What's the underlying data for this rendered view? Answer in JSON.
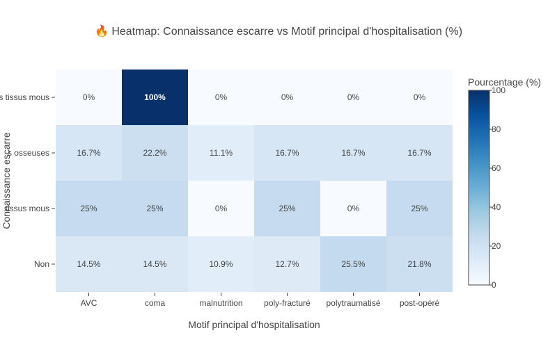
{
  "chart_data": {
    "type": "heatmap",
    "title": "🔥 Heatmap: Connaissance escarre vs Motif principal d'hospitalisation (%)",
    "xlabel": "Motif principal d'hospitalisation",
    "ylabel": "Connaissance escarre",
    "x": [
      "AVC",
      "coma",
      "malnutrition",
      "poly-fracturé",
      "polytraumatisé",
      "post-opéré"
    ],
    "y_top_to_bottom": [
      "s tissus mous",
      "s osseuses",
      "tissus mous",
      "Non"
    ],
    "values": [
      [
        0,
        100,
        0,
        0,
        0,
        0
      ],
      [
        16.7,
        22.2,
        11.1,
        16.7,
        16.7,
        16.7
      ],
      [
        25,
        25,
        0,
        25,
        0,
        25
      ],
      [
        14.5,
        14.5,
        10.9,
        12.7,
        25.5,
        21.8
      ]
    ],
    "cell_labels": [
      [
        "0%",
        "100%",
        "0%",
        "0%",
        "0%",
        "0%"
      ],
      [
        "16.7%",
        "22.2%",
        "11.1%",
        "16.7%",
        "16.7%",
        "16.7%"
      ],
      [
        "25%",
        "25%",
        "0%",
        "25%",
        "0%",
        "25%"
      ],
      [
        "14.5%",
        "14.5%",
        "10.9%",
        "12.7%",
        "25.5%",
        "21.8%"
      ]
    ],
    "zlim": [
      0,
      100
    ],
    "colorbar": {
      "title": "Pourcentage (%)",
      "ticks": [
        "0",
        "20",
        "40",
        "60",
        "80",
        "100"
      ]
    },
    "colorscale": "Blues",
    "colors": {
      "low": "#f7fbff",
      "high": "#08306b",
      "text_dark": "#444444",
      "text_light": "#ffffff"
    }
  }
}
